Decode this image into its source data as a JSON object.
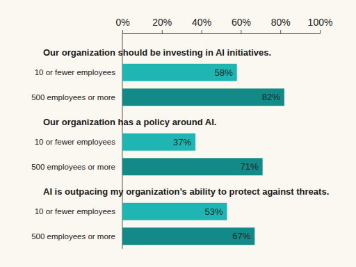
{
  "chart_data": {
    "type": "bar",
    "orientation": "horizontal",
    "data_labels": true,
    "tick_labels": "x",
    "categories": [
      "Our organization should be investing in AI initiatives.",
      "Our organization has a policy around AI.",
      "AI is outpacing my organization’s ability to protect against threats."
    ],
    "series": [
      {
        "name": "10 or fewer employees",
        "color": "#1fb5b3",
        "values": [
          58,
          37,
          53
        ],
        "value_labels": [
          "58%",
          "37%",
          "53%"
        ]
      },
      {
        "name": "500 employees or more",
        "color": "#138a87",
        "values": [
          82,
          71,
          67
        ],
        "value_labels": [
          "82%",
          "71%",
          "67%"
        ]
      }
    ],
    "xlim": [
      0,
      100
    ],
    "xticks": [
      {
        "value": 0,
        "label": "0%"
      },
      {
        "value": 20,
        "label": "20%"
      },
      {
        "value": 40,
        "label": "40%"
      },
      {
        "value": 60,
        "label": "60%"
      },
      {
        "value": 80,
        "label": "80%"
      },
      {
        "value": 100,
        "label": "100%"
      }
    ]
  }
}
